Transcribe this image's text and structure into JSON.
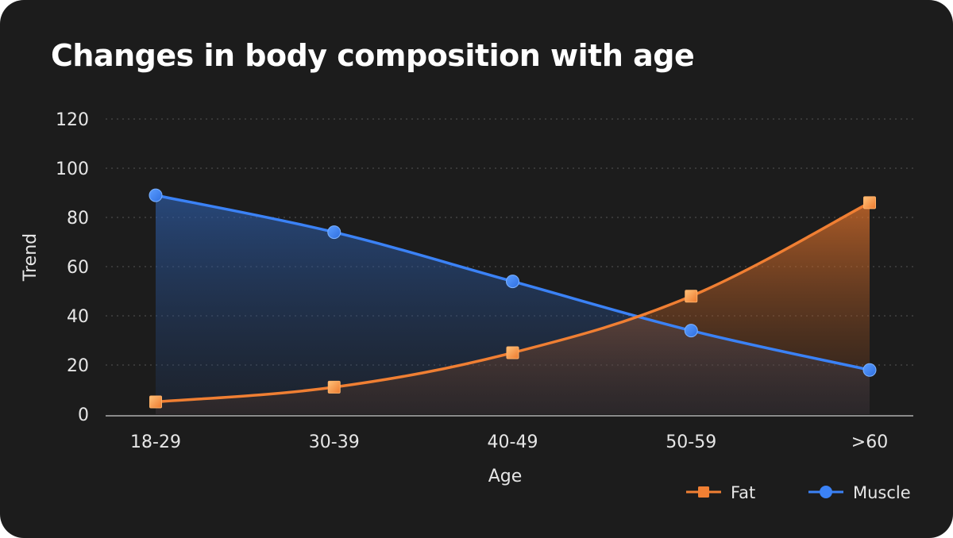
{
  "chart_data": {
    "type": "line",
    "title": "Changes in body composition with age",
    "xlabel": "Age",
    "ylabel": "Trend",
    "categories": [
      "18-29",
      "30-39",
      "40-49",
      "50-59",
      ">60"
    ],
    "ylim": [
      0,
      120
    ],
    "yticks": [
      0,
      20,
      40,
      60,
      80,
      100,
      120
    ],
    "grid": "horizontal dotted",
    "area_fill": true,
    "legend_position": "bottom-right",
    "series": [
      {
        "name": "Fat",
        "marker": "square",
        "color": "#f07f33",
        "values": [
          5,
          11,
          25,
          48,
          86
        ]
      },
      {
        "name": "Muscle",
        "marker": "circle",
        "color": "#3b82f6",
        "values": [
          89,
          74,
          54,
          34,
          18
        ]
      }
    ]
  }
}
